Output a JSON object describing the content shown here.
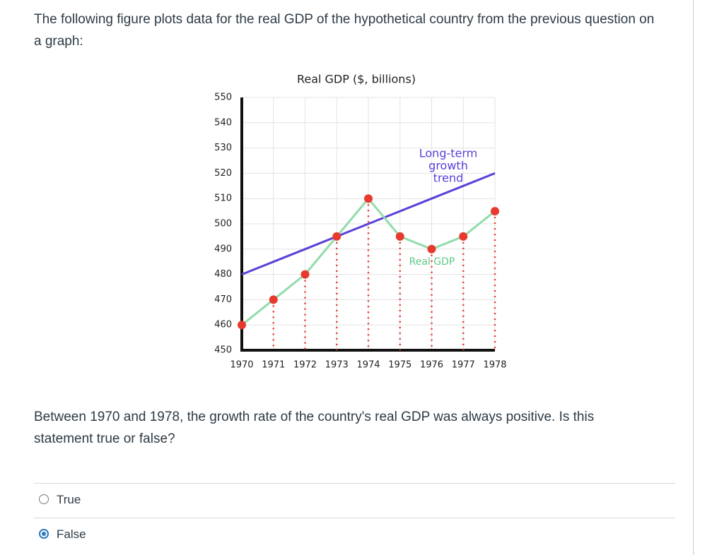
{
  "intro": "The following figure plots data for the real GDP of the hypothetical country from the previous question on a graph:",
  "chart_data": {
    "type": "line",
    "title": "Real GDP ($, billions)",
    "categories": [
      "1970",
      "1971",
      "1972",
      "1973",
      "1974",
      "1975",
      "1976",
      "1977",
      "1978"
    ],
    "series": [
      {
        "role": "trend",
        "color": "#5a3fd9",
        "values": [
          480,
          485,
          490,
          495,
          500,
          505,
          510,
          515,
          520
        ]
      },
      {
        "role": "gdp",
        "color": "#90dcaa",
        "marker_color": "#e8392f",
        "values": [
          460,
          470,
          480,
          495,
          510,
          495,
          490,
          495,
          505
        ]
      }
    ],
    "annotations": {
      "trend_label": [
        "Long-term",
        "growth",
        "trend"
      ],
      "gdp_label": "Real GDP"
    },
    "ylim": [
      450,
      550
    ],
    "yticks": [
      450,
      460,
      470,
      480,
      490,
      500,
      510,
      520,
      530,
      540,
      550
    ],
    "grid": true
  },
  "question": "Between 1970 and 1978, the growth rate of the country's real GDP was always positive. Is this statement true or false?",
  "options": [
    {
      "label": "True",
      "selected": false
    },
    {
      "label": "False",
      "selected": true
    }
  ]
}
